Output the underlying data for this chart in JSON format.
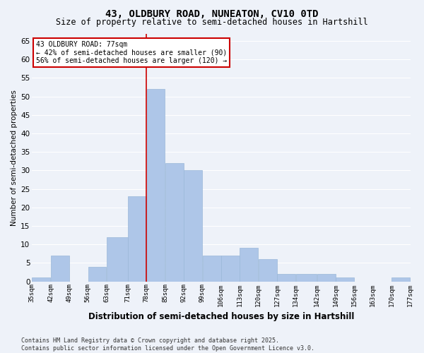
{
  "title_line1": "43, OLDBURY ROAD, NUNEATON, CV10 0TD",
  "title_line2": "Size of property relative to semi-detached houses in Hartshill",
  "xlabel": "Distribution of semi-detached houses by size in Hartshill",
  "ylabel": "Number of semi-detached properties",
  "footer_line1": "Contains HM Land Registry data © Crown copyright and database right 2025.",
  "footer_line2": "Contains public sector information licensed under the Open Government Licence v3.0.",
  "annotation_title": "43 OLDBURY ROAD: 77sqm",
  "annotation_line2": "← 42% of semi-detached houses are smaller (90)",
  "annotation_line3": "56% of semi-detached houses are larger (120) →",
  "bar_left_edges": [
    35,
    42,
    49,
    56,
    63,
    71,
    78,
    85,
    92,
    99,
    106,
    113,
    120,
    127,
    134,
    142,
    149,
    156,
    163,
    170
  ],
  "bar_widths": [
    7,
    7,
    7,
    7,
    8,
    7,
    7,
    7,
    7,
    7,
    7,
    7,
    7,
    7,
    8,
    7,
    7,
    7,
    7,
    7
  ],
  "bar_heights": [
    1,
    7,
    0,
    4,
    12,
    23,
    52,
    32,
    30,
    7,
    7,
    9,
    6,
    2,
    2,
    2,
    1,
    0,
    0,
    1
  ],
  "tick_labels": [
    "35sqm",
    "42sqm",
    "49sqm",
    "56sqm",
    "63sqm",
    "71sqm",
    "78sqm",
    "85sqm",
    "92sqm",
    "99sqm",
    "106sqm",
    "113sqm",
    "120sqm",
    "127sqm",
    "134sqm",
    "142sqm",
    "149sqm",
    "156sqm",
    "163sqm",
    "170sqm",
    "177sqm"
  ],
  "tick_positions": [
    35,
    42,
    49,
    56,
    63,
    71,
    78,
    85,
    92,
    99,
    106,
    113,
    120,
    127,
    134,
    142,
    149,
    156,
    163,
    170,
    177
  ],
  "bar_color": "#aec6e8",
  "bar_edge_color": "#9ab8d8",
  "vline_color": "#cc0000",
  "vline_x": 78,
  "annotation_box_color": "#cc0000",
  "background_color": "#eef2f9",
  "plot_bg_color": "#eef2f9",
  "grid_color": "#ffffff",
  "ylim": [
    0,
    67
  ],
  "yticks": [
    0,
    5,
    10,
    15,
    20,
    25,
    30,
    35,
    40,
    45,
    50,
    55,
    60,
    65
  ],
  "title1_fontsize": 10,
  "title2_fontsize": 8.5,
  "xlabel_fontsize": 8.5,
  "ylabel_fontsize": 7.5,
  "xtick_fontsize": 6.5,
  "ytick_fontsize": 7.5,
  "footer_fontsize": 6,
  "annot_fontsize": 7
}
